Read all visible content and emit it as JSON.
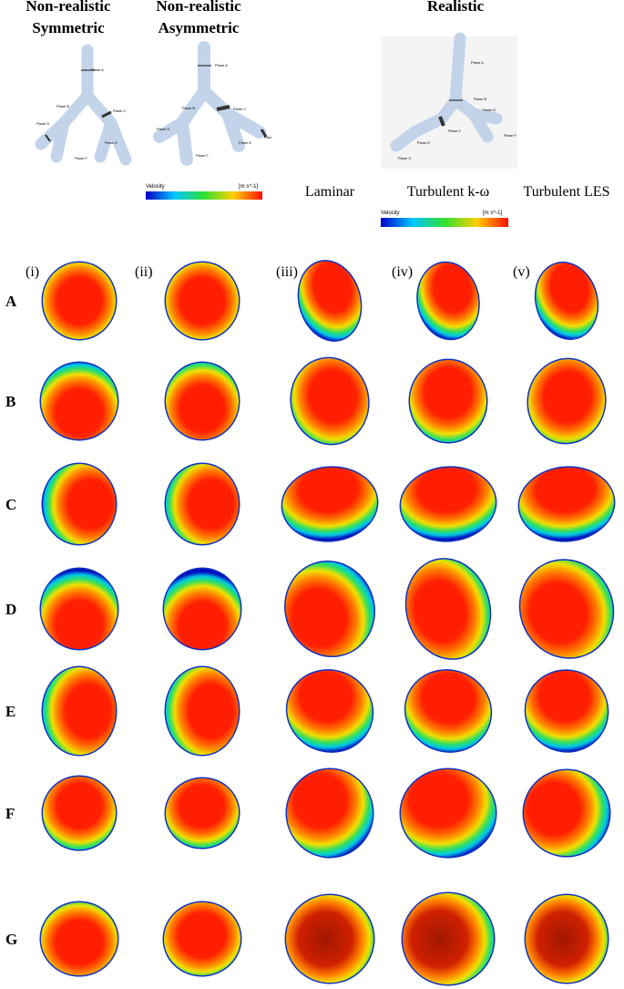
{
  "header": {
    "symmetric": [
      "Non-realistic",
      "Symmetric"
    ],
    "asymmetric": [
      "Non-realistic",
      "Asymmetric"
    ],
    "realistic": "Realistic"
  },
  "airways": {
    "symmetric": [
      "Plane A",
      "Plane B",
      "Plane C",
      "Plane D",
      "Plane E",
      "Plane F"
    ],
    "asymmetric": [
      "Plane A",
      "Plane B",
      "Plane C",
      "Plane D",
      "Plane E",
      "Plane F",
      "Plan"
    ],
    "realistic": [
      "Plane A",
      "Plane B",
      "Plane C",
      "Plane D",
      "Plane E",
      "Plane F",
      "Plane G"
    ]
  },
  "colorbar": {
    "title": "Velocity",
    "unit": "[m s^-1]"
  },
  "methods": [
    "Laminar",
    "Turbulent k-ω",
    "Turbulent LES"
  ],
  "columns": [
    "(i)",
    "(ii)",
    "(iii)",
    "(iv)",
    "(v)"
  ],
  "rows": [
    "A",
    "B",
    "C",
    "D",
    "E",
    "F",
    "G"
  ]
}
